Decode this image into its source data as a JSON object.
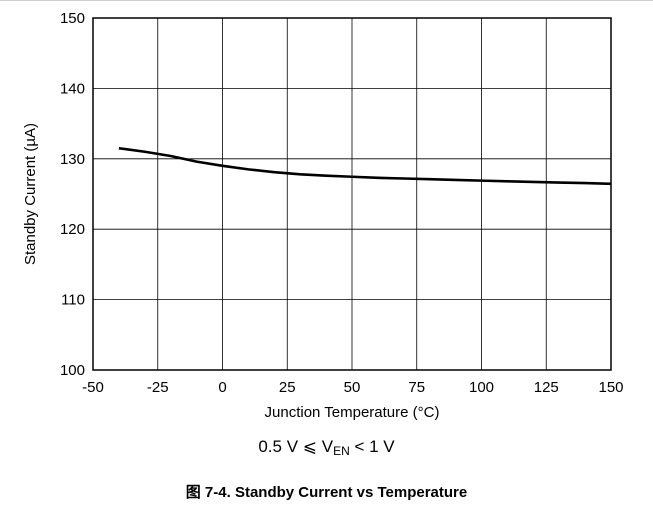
{
  "chart_data": {
    "type": "line",
    "ylabel": "Standby Current (µA)",
    "xlabel": "Junction Temperature (°C)",
    "xlim": [
      -50,
      150
    ],
    "ylim": [
      100,
      150
    ],
    "x_ticks": [
      "-50",
      "-25",
      "0",
      "25",
      "50",
      "75",
      "100",
      "125",
      "150"
    ],
    "y_ticks": [
      "100",
      "110",
      "120",
      "130",
      "140",
      "150"
    ],
    "grid": true,
    "series": [
      {
        "x": [
          -40,
          -30,
          -20,
          -10,
          0,
          10,
          20,
          30,
          40,
          50,
          60,
          70,
          80,
          90,
          100,
          110,
          120,
          130,
          140,
          150
        ],
        "y": [
          131.5,
          131.0,
          130.4,
          129.6,
          129.0,
          128.5,
          128.1,
          127.8,
          127.6,
          127.45,
          127.3,
          127.2,
          127.1,
          127.0,
          126.9,
          126.8,
          126.72,
          126.63,
          126.55,
          126.45
        ]
      }
    ],
    "line_color": "#000000"
  },
  "condition": {
    "prefix": "0.5 V ⩽ V",
    "subscript": "EN",
    "suffix": " < 1 V"
  },
  "caption": "图 7-4. Standby Current vs Temperature"
}
